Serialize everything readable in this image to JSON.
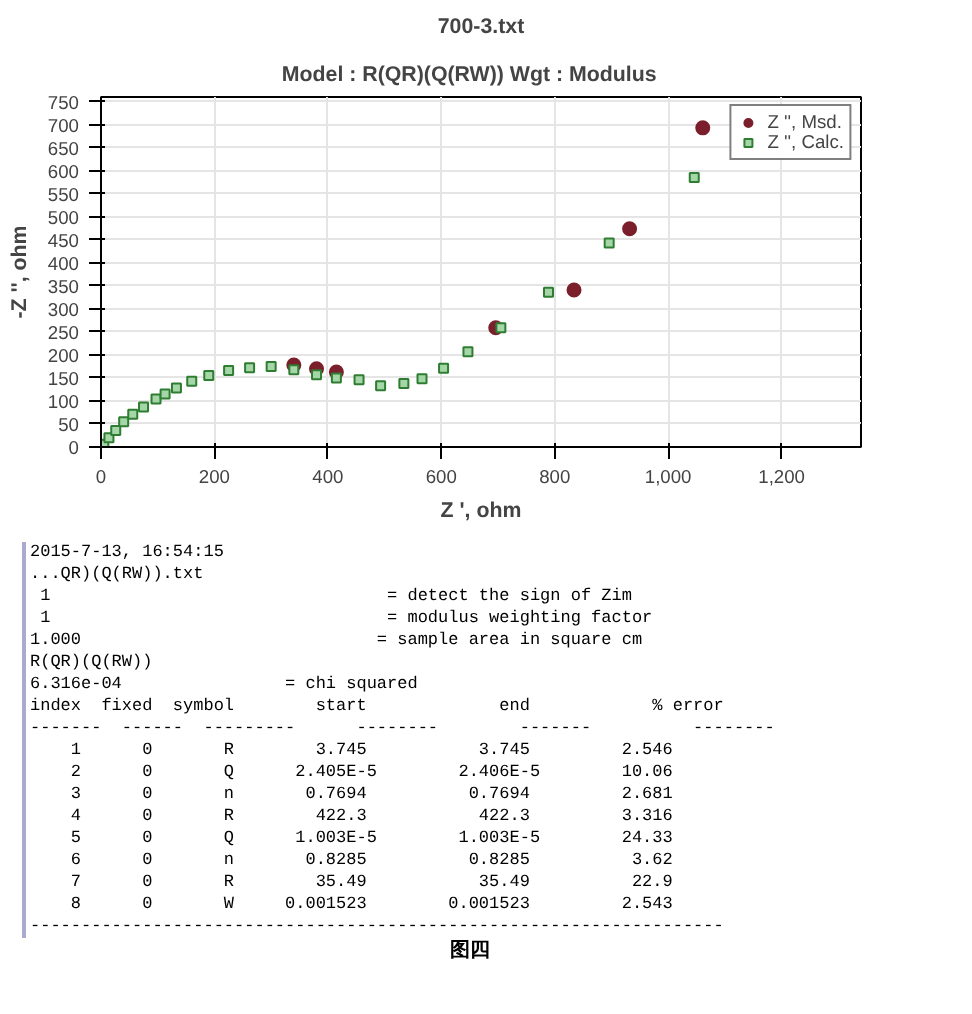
{
  "chart_data": {
    "type": "scatter",
    "title": "700-3.txt",
    "subtitle": "Model : R(QR)(Q(RW))     Wgt : Modulus",
    "xlabel": "Z ', ohm",
    "ylabel": "-Z '', ohm",
    "xlim": [
      0,
      1340
    ],
    "ylim": [
      0,
      760
    ],
    "xticks": [
      0,
      200,
      400,
      600,
      800,
      {
        "value": 1000,
        "label": "1,000"
      },
      {
        "value": 1200,
        "label": "1,200"
      }
    ],
    "yticks": [
      0,
      50,
      100,
      150,
      200,
      250,
      300,
      350,
      400,
      450,
      500,
      550,
      600,
      650,
      700,
      750
    ],
    "grid": true,
    "legend": "top right",
    "series": [
      {
        "name": "Z '', Msd.",
        "color": "#7a1f2b",
        "marker": "circle",
        "x": [
          340,
          380,
          415,
          696,
          834,
          932,
          1061
        ],
        "values": [
          178,
          170,
          163,
          259,
          341,
          474,
          693
        ]
      },
      {
        "name": "Z '', Calc.",
        "color": "#2e7d32",
        "marker": "square",
        "x": [
          5,
          14,
          26,
          40,
          56,
          75,
          97,
          113,
          133,
          160,
          190,
          225,
          262,
          300,
          340,
          380,
          415,
          455,
          493,
          534,
          566,
          604,
          647,
          705,
          789,
          896,
          1046
        ],
        "values": [
          6,
          20,
          36,
          55,
          71,
          87,
          104,
          115,
          128,
          143,
          155,
          166,
          172,
          175,
          168,
          157,
          150,
          146,
          133,
          138,
          148,
          171,
          207,
          259,
          336,
          443,
          585
        ]
      }
    ],
    "annotations": [
      "2015-7-13, 16:54:15",
      "...QR)(Q(RW)).txt",
      " 1                                 = detect the sign of Zim",
      " 1                                 = modulus weighting factor",
      "1.000                             = sample area in square cm",
      "R(QR)(Q(RW))",
      "6.316e-04                = chi squared",
      "index  fixed  symbol        start             end            % error",
      "-------  ------  ---------      --------        -------          --------",
      "    1      0       R        3.745           3.745         2.546",
      "    2      0       Q      2.405E-5        2.406E-5        10.06",
      "    3      0       n       0.7694          0.7694         2.681",
      "    4      0       R        422.3           422.3         3.316",
      "    5      0       Q      1.003E-5        1.003E-5        24.33",
      "    6      0       n       0.8285          0.8285          3.62",
      "    7      0       R        35.49           35.49          22.9",
      "    8      0       W     0.001523        0.001523         2.543",
      "--------------------------------------------------------------------",
      "图四"
    ]
  }
}
